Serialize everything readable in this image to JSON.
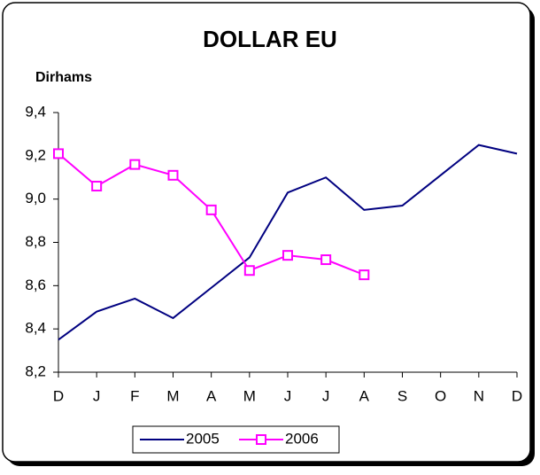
{
  "chart_data": {
    "type": "line",
    "title": "DOLLAR EU",
    "y_label": "Dirhams",
    "categories": [
      "D",
      "J",
      "F",
      "M",
      "A",
      "M",
      "J",
      "J",
      "A",
      "S",
      "O",
      "N",
      "D"
    ],
    "series": [
      {
        "name": "2005",
        "color": "#000080",
        "values": [
          8.35,
          8.48,
          8.54,
          8.45,
          8.59,
          8.73,
          9.03,
          9.1,
          8.95,
          8.97,
          9.11,
          9.25,
          9.21
        ]
      },
      {
        "name": "2006",
        "color": "#ff00ff",
        "values": [
          9.21,
          9.06,
          9.16,
          9.11,
          8.95,
          8.67,
          8.74,
          8.72,
          8.65,
          null,
          null,
          null,
          null
        ]
      }
    ],
    "ylim": [
      8.2,
      9.4
    ],
    "yticks": [
      {
        "value": 8.2,
        "label": "8,2"
      },
      {
        "value": 8.4,
        "label": "8,4"
      },
      {
        "value": 8.6,
        "label": "8,6"
      },
      {
        "value": 8.8,
        "label": "8,8"
      },
      {
        "value": 9.0,
        "label": "9,0"
      },
      {
        "value": 9.2,
        "label": "9,2"
      },
      {
        "value": 9.4,
        "label": "9,4"
      }
    ],
    "legend": "bottom"
  }
}
